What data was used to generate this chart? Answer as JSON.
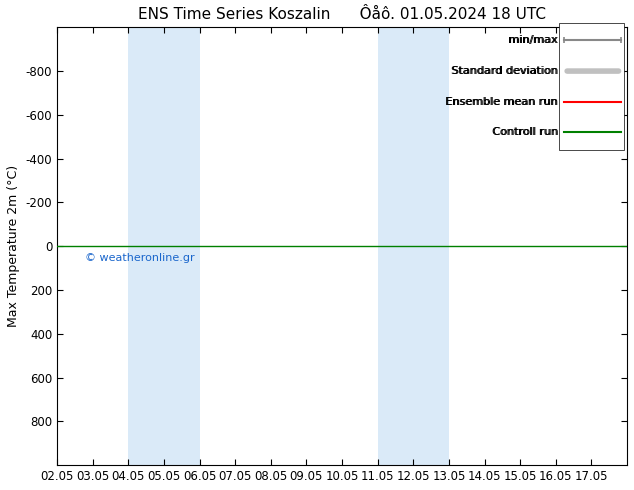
{
  "title": "ENS Time Series Koszalin      Ôåô. 01.05.2024 18 UTC",
  "ylabel": "Max Temperature 2m (°C)",
  "xlim_left": 0,
  "xlim_right": 16,
  "ylim_bottom": 1000,
  "ylim_top": -1000,
  "yticks": [
    -800,
    -600,
    -400,
    -200,
    0,
    200,
    400,
    600,
    800
  ],
  "xtick_labels": [
    "02.05",
    "03.05",
    "04.05",
    "05.05",
    "06.05",
    "07.05",
    "08.05",
    "09.05",
    "10.05",
    "11.05",
    "12.05",
    "13.05",
    "14.05",
    "15.05",
    "16.05",
    "17.05"
  ],
  "shaded_bands": [
    [
      2.0,
      3.0
    ],
    [
      3.0,
      4.0
    ],
    [
      9.0,
      10.0
    ],
    [
      10.0,
      11.0
    ]
  ],
  "shaded_color": "#daeaf8",
  "control_run_y": 0,
  "control_run_color": "#008000",
  "ensemble_mean_color": "#ff0000",
  "minmax_color": "#888888",
  "stddev_color": "#c8c8c8",
  "watermark": "© weatheronline.gr",
  "watermark_color": "#1a66cc",
  "background_color": "#ffffff",
  "legend_entries": [
    "min/max",
    "Standard deviation",
    "Ensemble mean run",
    "Controll run"
  ],
  "legend_colors": [
    "#888888",
    "#c0c0c0",
    "#ff0000",
    "#008000"
  ]
}
